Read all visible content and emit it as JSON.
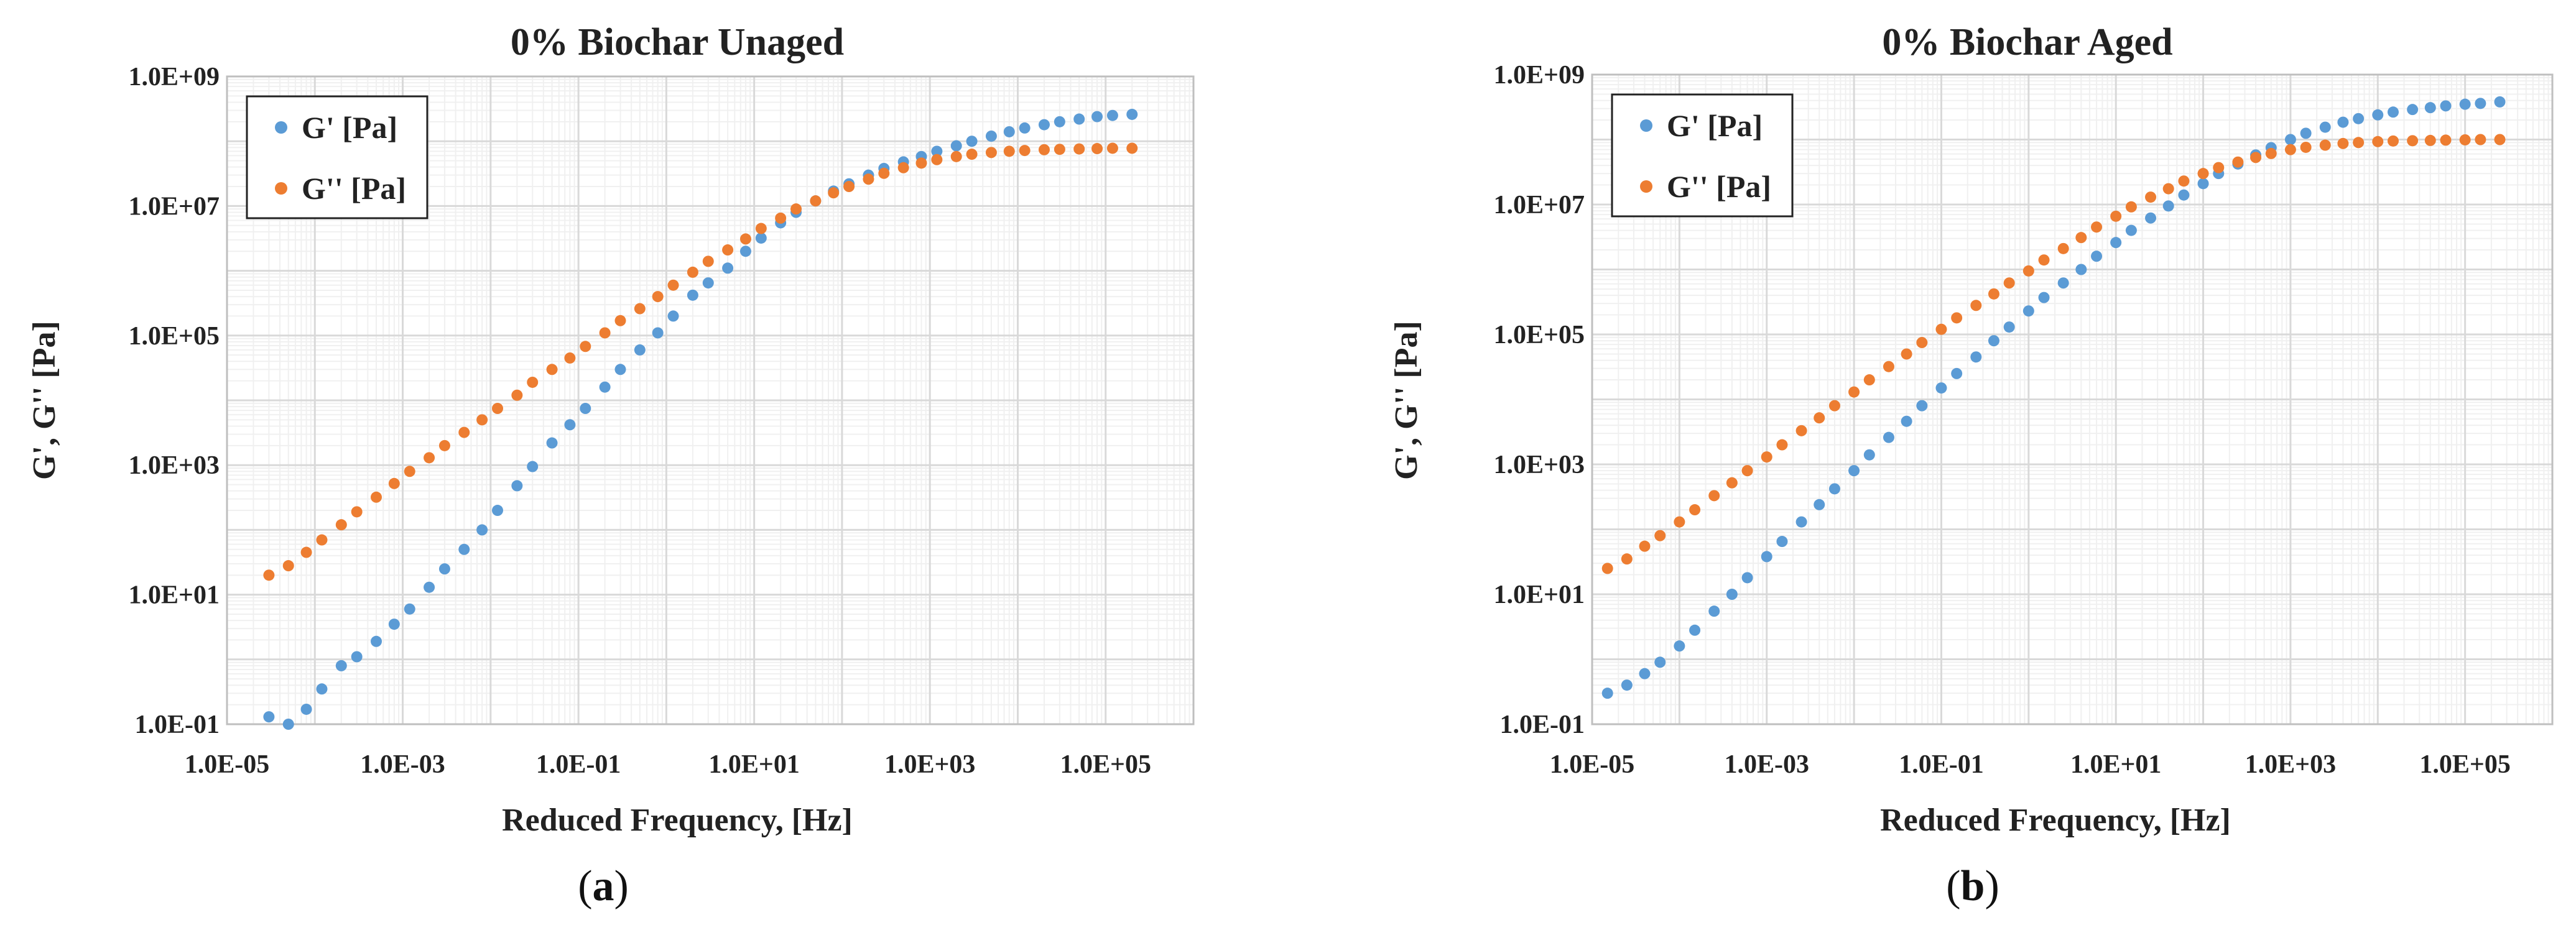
{
  "colors": {
    "g_prime": "#5b9bd5",
    "g_double": "#ed7d31",
    "grid_major": "#d9d9d9",
    "grid_minor": "#f0f0f0"
  },
  "chart_data": [
    {
      "type": "scatter",
      "title": "0% Biochar Unaged",
      "xlabel": "Reduced Frequency, [Hz]",
      "ylabel": "G', G'' [Pa]",
      "xscale": "log",
      "yscale": "log",
      "xlim": [
        1e-05,
        1000000.0
      ],
      "ylim": [
        0.1,
        1000000000.0
      ],
      "xticks": [
        "1.0E-05",
        "1.0E-03",
        "1.0E-01",
        "1.0E+01",
        "1.0E+03",
        "1.0E+05"
      ],
      "yticks": [
        "1.0E-01",
        "1.0E+01",
        "1.0E+03",
        "1.0E+05",
        "1.0E+07",
        "1.0E+09"
      ],
      "legend_position": "top-left",
      "caption": "a",
      "series": [
        {
          "name": "G' [Pa]",
          "color": "#5b9bd5",
          "x": [
            3e-05,
            5e-05,
            8e-05,
            0.00012,
            0.0002,
            0.0003,
            0.0005,
            0.0008,
            0.0012,
            0.002,
            0.003,
            0.005,
            0.008,
            0.012,
            0.02,
            0.03,
            0.05,
            0.08,
            0.12,
            0.2,
            0.3,
            0.5,
            0.8,
            1.2,
            2,
            3,
            5,
            8,
            12,
            20,
            30,
            50,
            80,
            120,
            200,
            300,
            500,
            800,
            1200,
            2000,
            3000,
            5000,
            8000,
            12000,
            20000,
            30000,
            50000,
            80000,
            120000,
            200000
          ],
          "y": [
            0.13,
            0.1,
            0.17,
            0.35,
            0.8,
            1.1,
            1.9,
            3.5,
            6,
            13,
            25,
            50,
            100,
            200,
            480,
            950,
            2200,
            4200,
            7500,
            16000,
            30000,
            60000,
            110000,
            200000,
            420000,
            650000,
            1100000.0,
            2000000.0,
            3200000.0,
            5500000.0,
            8000000.0,
            12000000.0,
            17000000.0,
            22000000.0,
            30000000.0,
            38000000.0,
            48000000.0,
            58000000.0,
            70000000.0,
            85000000.0,
            100000000.0,
            120000000.0,
            140000000.0,
            160000000.0,
            180000000.0,
            200000000.0,
            220000000.0,
            240000000.0,
            250000000.0,
            260000000.0
          ]
        },
        {
          "name": "G'' [Pa]",
          "color": "#ed7d31",
          "x": [
            3e-05,
            5e-05,
            8e-05,
            0.00012,
            0.0002,
            0.0003,
            0.0005,
            0.0008,
            0.0012,
            0.002,
            0.003,
            0.005,
            0.008,
            0.012,
            0.02,
            0.03,
            0.05,
            0.08,
            0.12,
            0.2,
            0.3,
            0.5,
            0.8,
            1.2,
            2,
            3,
            5,
            8,
            12,
            20,
            30,
            50,
            80,
            120,
            200,
            300,
            500,
            800,
            1200,
            2000,
            3000,
            5000,
            8000,
            12000,
            20000,
            30000,
            50000,
            80000,
            120000,
            200000
          ],
          "y": [
            20,
            28,
            45,
            70,
            120,
            190,
            320,
            520,
            800,
            1300,
            2000,
            3200,
            5000,
            7500,
            12000,
            19000,
            30000,
            45000,
            68000,
            110000,
            170000,
            260000,
            400000,
            600000,
            950000,
            1400000.0,
            2100000.0,
            3100000.0,
            4500000.0,
            6500000.0,
            9000000.0,
            12000000.0,
            16000000.0,
            20000000.0,
            26000000.0,
            32000000.0,
            39000000.0,
            46000000.0,
            52000000.0,
            58000000.0,
            63000000.0,
            67000000.0,
            70000000.0,
            72000000.0,
            74000000.0,
            75000000.0,
            76000000.0,
            77000000.0,
            78000000.0,
            78000000.0
          ]
        }
      ]
    },
    {
      "type": "scatter",
      "title": "0% Biochar Aged",
      "xlabel": "Reduced Frequency, [Hz]",
      "ylabel": "G', G'' [Pa]",
      "xscale": "log",
      "yscale": "log",
      "xlim": [
        1e-05,
        1000000.0
      ],
      "ylim": [
        0.1,
        1000000000.0
      ],
      "xticks": [
        "1.0E-05",
        "1.0E-03",
        "1.0E-01",
        "1.0E+01",
        "1.0E+03",
        "1.0E+05"
      ],
      "yticks": [
        "1.0E-01",
        "1.0E+01",
        "1.0E+03",
        "1.0E+05",
        "1.0E+07",
        "1.0E+09"
      ],
      "legend_position": "top-left",
      "caption": "b",
      "series": [
        {
          "name": "G' [Pa]",
          "color": "#5b9bd5",
          "x": [
            1.5e-05,
            2.5e-05,
            4e-05,
            6e-05,
            0.0001,
            0.00015,
            0.00025,
            0.0004,
            0.0006,
            0.001,
            0.0015,
            0.0025,
            0.004,
            0.006,
            0.01,
            0.015,
            0.025,
            0.04,
            0.06,
            0.1,
            0.15,
            0.25,
            0.4,
            0.6,
            1,
            1.5,
            2.5,
            4,
            6,
            10,
            15,
            25,
            40,
            60,
            100,
            150,
            250,
            400,
            600,
            1000,
            1500,
            2500,
            4000,
            6000,
            10000,
            15000,
            25000,
            40000,
            60000,
            100000,
            150000,
            250000
          ],
          "y": [
            0.3,
            0.4,
            0.6,
            0.9,
            1.6,
            2.8,
            5.5,
            10,
            18,
            38,
            65,
            130,
            240,
            420,
            800,
            1400,
            2600,
            4600,
            8000,
            15000,
            25000,
            45000,
            80000,
            130000,
            230000,
            370000,
            620000,
            1000000.0,
            1600000.0,
            2600000.0,
            4000000.0,
            6200000.0,
            9500000.0,
            14000000.0,
            21000000.0,
            30000000.0,
            42000000.0,
            58000000.0,
            75000000.0,
            100000000.0,
            125000000.0,
            155000000.0,
            185000000.0,
            210000000.0,
            240000000.0,
            265000000.0,
            290000000.0,
            310000000.0,
            330000000.0,
            350000000.0,
            360000000.0,
            380000000.0
          ]
        },
        {
          "name": "G'' [Pa]",
          "color": "#ed7d31",
          "x": [
            1.5e-05,
            2.5e-05,
            4e-05,
            6e-05,
            0.0001,
            0.00015,
            0.00025,
            0.0004,
            0.0006,
            0.001,
            0.0015,
            0.0025,
            0.004,
            0.006,
            0.01,
            0.015,
            0.025,
            0.04,
            0.06,
            0.1,
            0.15,
            0.25,
            0.4,
            0.6,
            1,
            1.5,
            2.5,
            4,
            6,
            10,
            15,
            25,
            40,
            60,
            100,
            150,
            250,
            400,
            600,
            1000,
            1500,
            2500,
            4000,
            6000,
            10000,
            15000,
            25000,
            40000,
            60000,
            100000,
            150000,
            250000
          ],
          "y": [
            25,
            35,
            55,
            80,
            130,
            200,
            330,
            520,
            800,
            1300,
            2000,
            3300,
            5200,
            8000,
            13000,
            20000,
            32000,
            50000,
            75000,
            120000,
            180000,
            280000,
            420000,
            620000,
            950000,
            1400000.0,
            2100000.0,
            3100000.0,
            4500000.0,
            6600000.0,
            9200000.0,
            13000000.0,
            17500000.0,
            23000000.0,
            30000000.0,
            37000000.0,
            45000000.0,
            53000000.0,
            61000000.0,
            70000000.0,
            76000000.0,
            82000000.0,
            87000000.0,
            90000000.0,
            93000000.0,
            95000000.0,
            96000000.0,
            97000000.0,
            98000000.0,
            99000000.0,
            100000000.0,
            100000000.0
          ]
        }
      ]
    }
  ]
}
